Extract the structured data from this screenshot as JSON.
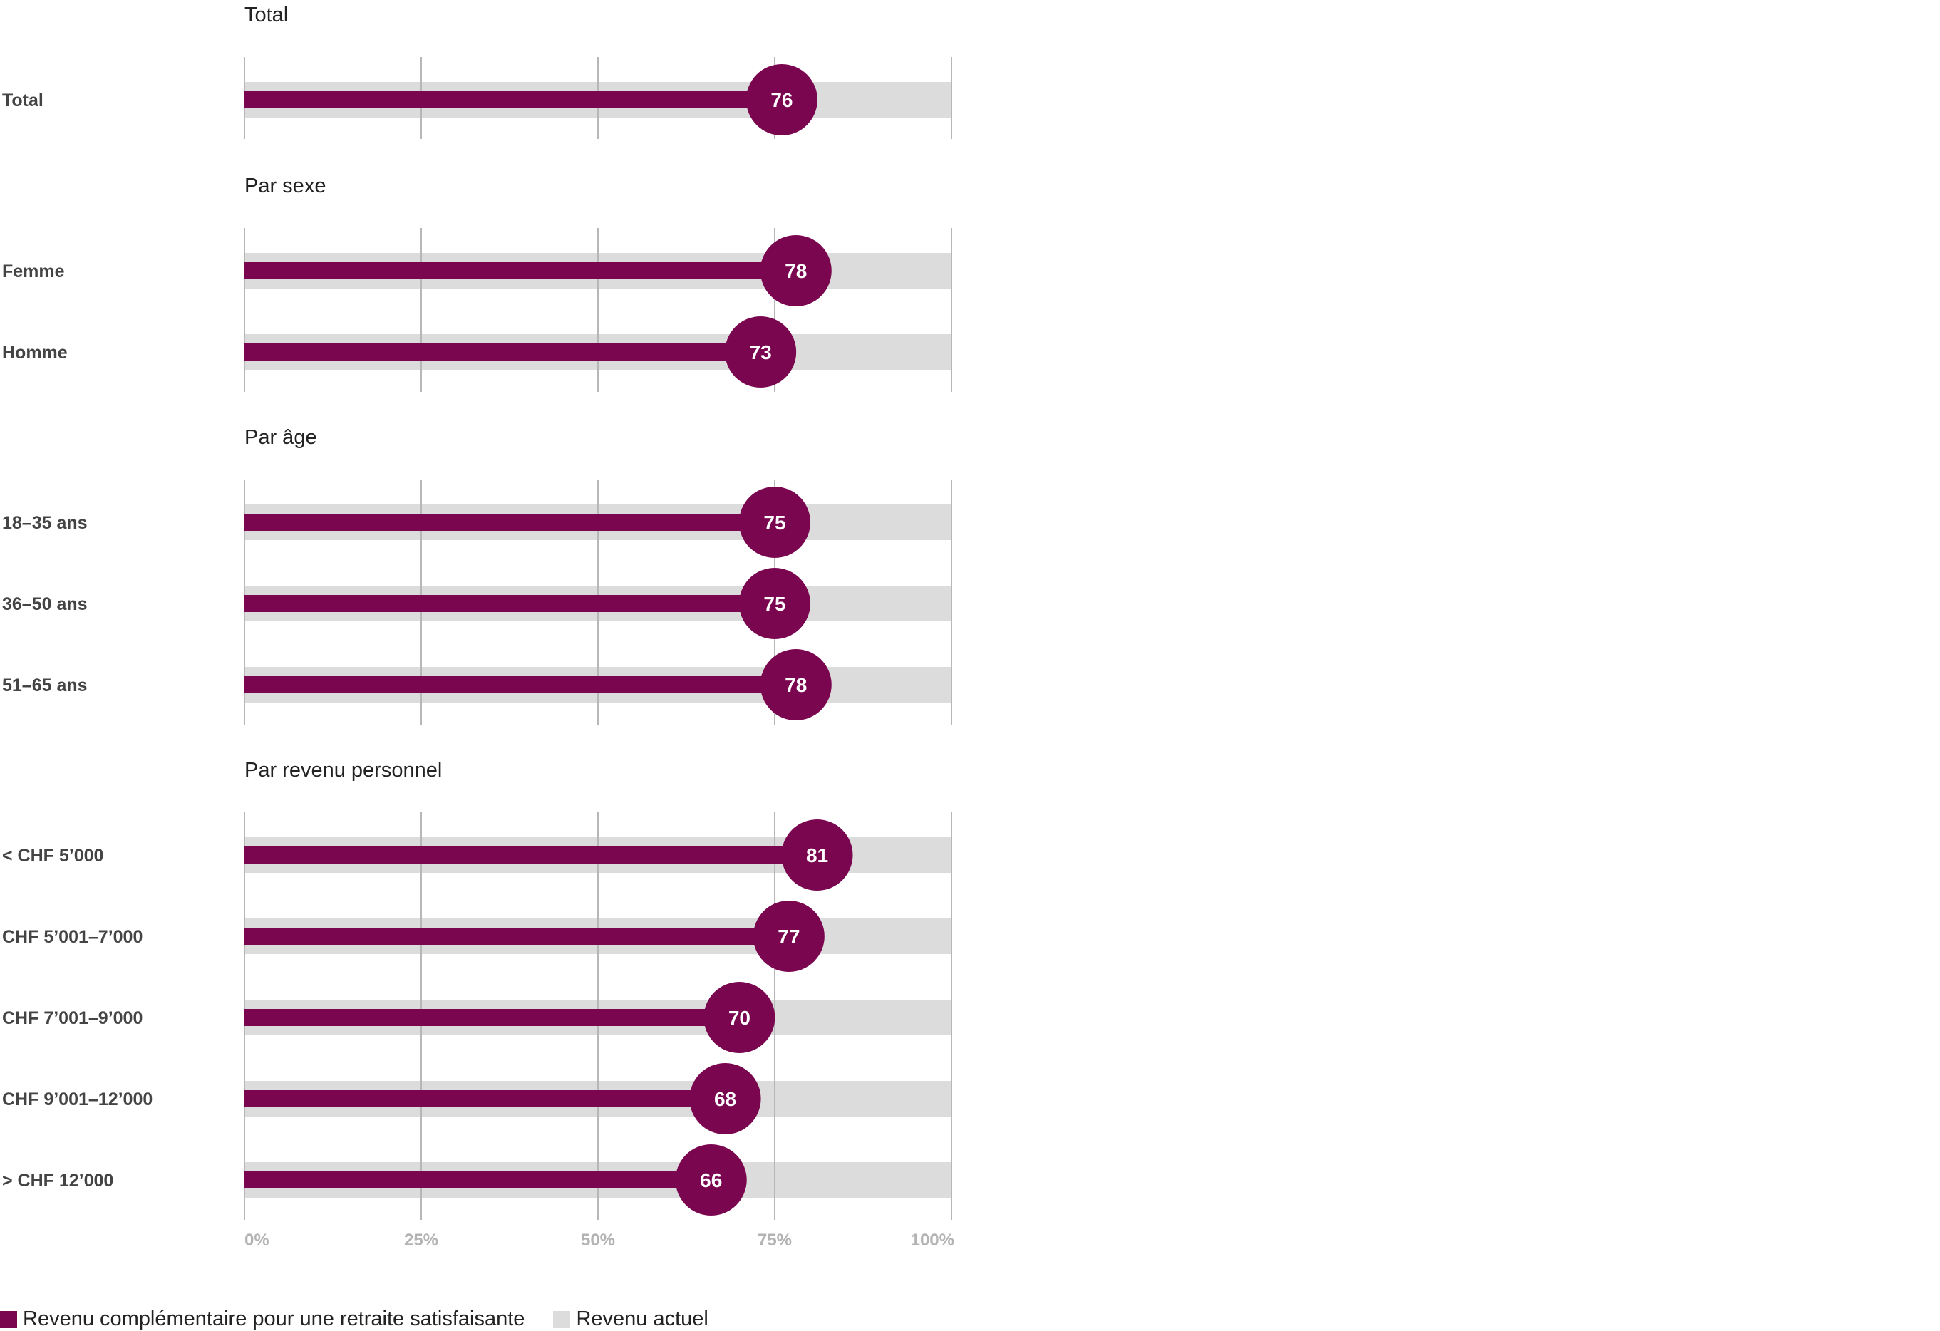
{
  "chart_data": {
    "type": "bar",
    "xlim": [
      0,
      100
    ],
    "ticks": [
      "0%",
      "25%",
      "50%",
      "75%",
      "100%"
    ],
    "colors": {
      "primary": "#7b0650",
      "background_bar": "#dcdcdc",
      "grid": "#b7b7b7"
    },
    "legend": {
      "position": "bottom-left",
      "items": [
        {
          "label": "Revenu complémentaire pour une retraite satisfaisante",
          "color": "#7b0650"
        },
        {
          "label": "Revenu actuel",
          "color": "#dcdcdc"
        }
      ]
    },
    "groups": [
      {
        "title": "Total",
        "rows": [
          {
            "label": "Total",
            "value": 76,
            "display": "76"
          }
        ]
      },
      {
        "title": "Par sexe",
        "rows": [
          {
            "label": "Femme",
            "value": 78,
            "display": "78"
          },
          {
            "label": "Homme",
            "value": 73,
            "display": "73"
          }
        ]
      },
      {
        "title": "Par âge",
        "rows": [
          {
            "label": "18–35 ans",
            "value": 75,
            "display": "75"
          },
          {
            "label": "36–50 ans",
            "value": 75,
            "display": "75"
          },
          {
            "label": "51–65 ans",
            "value": 78,
            "display": "78"
          }
        ]
      },
      {
        "title": "Par revenu personnel",
        "rows": [
          {
            "label": "< CHF 5’000",
            "value": 81,
            "display": "81"
          },
          {
            "label": "CHF 5’001–7’000",
            "value": 77,
            "display": "77"
          },
          {
            "label": "CHF 7’001–9’000",
            "value": 70,
            "display": "70"
          },
          {
            "label": "CHF 9’001–12’000",
            "value": 68,
            "display": "68"
          },
          {
            "label": "> CHF 12’000",
            "value": 66,
            "display": "66"
          }
        ]
      }
    ]
  }
}
